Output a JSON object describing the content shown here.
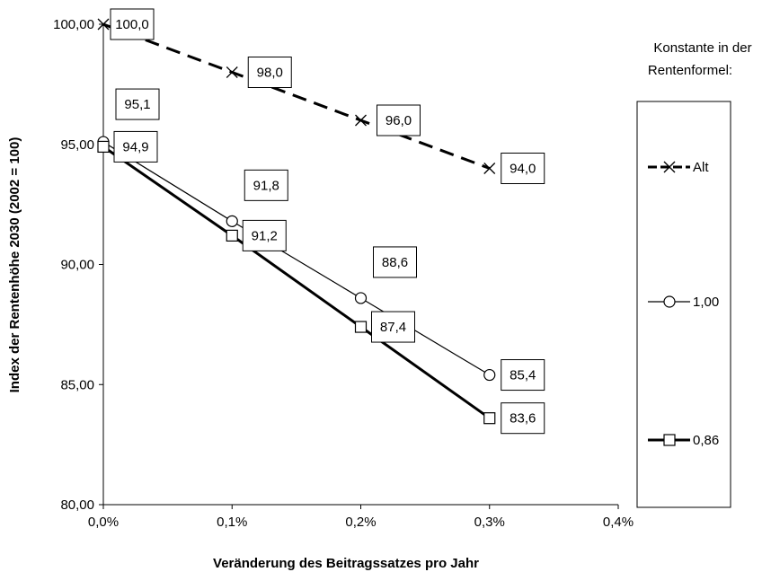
{
  "chart_data": {
    "type": "line",
    "xlabel": "Veränderung des Beitragssatzes pro Jahr",
    "ylabel": "Index der Rentenhöhe 2030 (2002 = 100)",
    "xlim": [
      0,
      0.4
    ],
    "ylim": [
      80,
      100
    ],
    "x_ticks": [
      0,
      0.1,
      0.2,
      0.3,
      0.4
    ],
    "x_tick_labels": [
      "0,0%",
      "0,1%",
      "0,2%",
      "0,3%",
      "0,4%"
    ],
    "y_ticks": [
      80,
      85,
      90,
      95,
      100
    ],
    "y_tick_labels": [
      "80,00",
      "85,00",
      "90,00",
      "95,00",
      "100,00"
    ],
    "grid": false,
    "legend": {
      "title": "Konstante in der Rentenformel:",
      "placement": "right"
    },
    "series": [
      {
        "name": "Alt",
        "marker": "x",
        "style": "dashed",
        "x": [
          0,
          0.1,
          0.2,
          0.3
        ],
        "values": [
          100.0,
          98.0,
          96.0,
          94.0
        ],
        "labels": [
          "100,0",
          "98,0",
          "96,0",
          "94,0"
        ]
      },
      {
        "name": "1,00",
        "marker": "circle",
        "style": "thin",
        "x": [
          0,
          0.1,
          0.2,
          0.3
        ],
        "values": [
          95.1,
          91.8,
          88.6,
          85.4
        ],
        "labels": [
          "95,1",
          "91,8",
          "88,6",
          "85,4"
        ]
      },
      {
        "name": "0,86",
        "marker": "square",
        "style": "thick",
        "x": [
          0,
          0.1,
          0.2,
          0.3
        ],
        "values": [
          94.9,
          91.2,
          87.4,
          83.6
        ],
        "labels": [
          "94,9",
          "91,2",
          "87,4",
          "83,6"
        ]
      }
    ]
  }
}
